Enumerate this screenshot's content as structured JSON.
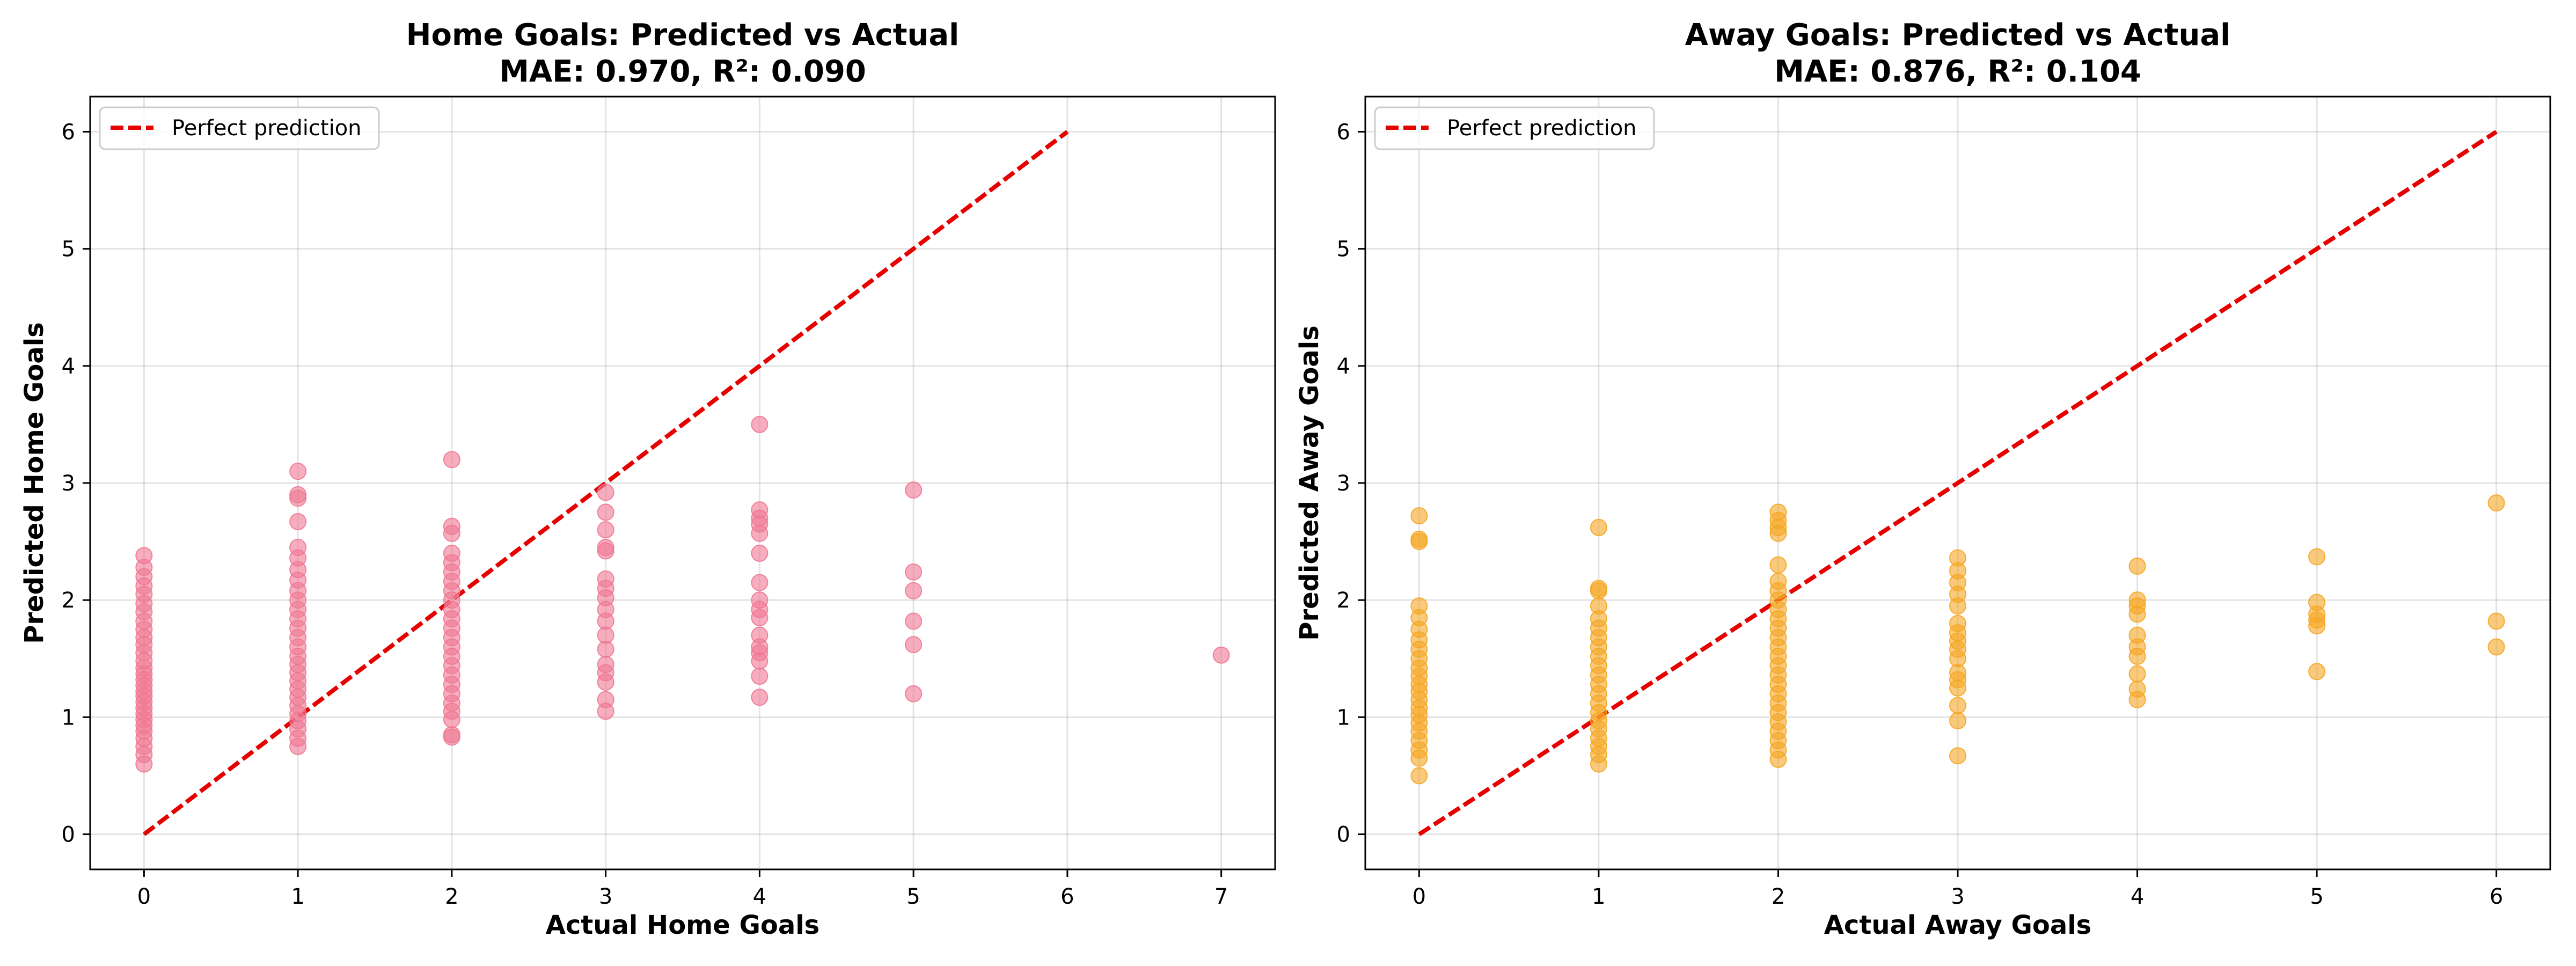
{
  "chart_data": [
    {
      "type": "scatter",
      "title": "Home Goals: Predicted vs Actual",
      "subtitle": "MAE: 0.970, R²: 0.090",
      "xlabel": "Actual Home Goals",
      "ylabel": "Predicted Home Goals",
      "xlim": [
        -0.35,
        7.35
      ],
      "ylim": [
        -0.3,
        6.3
      ],
      "xticks": [
        0,
        1,
        2,
        3,
        4,
        5,
        6,
        7
      ],
      "yticks": [
        0,
        1,
        2,
        3,
        4,
        5,
        6
      ],
      "grid": true,
      "legend": {
        "position": "top-left",
        "entries": [
          "Perfect prediction"
        ]
      },
      "colors": {
        "points": "#f07893",
        "reference": "#e60000"
      },
      "reference_line": {
        "name": "Perfect prediction",
        "x": [
          0,
          6
        ],
        "y": [
          0,
          6
        ]
      },
      "series": [
        {
          "points": [
            [
              0,
              0.6
            ],
            [
              0,
              0.68
            ],
            [
              0,
              0.75
            ],
            [
              0,
              0.82
            ],
            [
              0,
              0.88
            ],
            [
              0,
              0.93
            ],
            [
              0,
              0.98
            ],
            [
              0,
              1.03
            ],
            [
              0,
              1.08
            ],
            [
              0,
              1.13
            ],
            [
              0,
              1.18
            ],
            [
              0,
              1.22
            ],
            [
              0,
              1.27
            ],
            [
              0,
              1.32
            ],
            [
              0,
              1.37
            ],
            [
              0,
              1.42
            ],
            [
              0,
              1.48
            ],
            [
              0,
              1.55
            ],
            [
              0,
              1.62
            ],
            [
              0,
              1.68
            ],
            [
              0,
              1.75
            ],
            [
              0,
              1.82
            ],
            [
              0,
              1.9
            ],
            [
              0,
              1.97
            ],
            [
              0,
              2.05
            ],
            [
              0,
              2.12
            ],
            [
              0,
              2.2
            ],
            [
              0,
              2.28
            ],
            [
              0,
              2.38
            ],
            [
              1,
              0.75
            ],
            [
              1,
              0.82
            ],
            [
              1,
              0.9
            ],
            [
              1,
              0.97
            ],
            [
              1,
              1.03
            ],
            [
              1,
              1.1
            ],
            [
              1,
              1.17
            ],
            [
              1,
              1.24
            ],
            [
              1,
              1.31
            ],
            [
              1,
              1.38
            ],
            [
              1,
              1.45
            ],
            [
              1,
              1.52
            ],
            [
              1,
              1.6
            ],
            [
              1,
              1.68
            ],
            [
              1,
              1.76
            ],
            [
              1,
              1.84
            ],
            [
              1,
              1.92
            ],
            [
              1,
              2.0
            ],
            [
              1,
              2.08
            ],
            [
              1,
              2.17
            ],
            [
              1,
              2.26
            ],
            [
              1,
              2.36
            ],
            [
              1,
              2.45
            ],
            [
              1,
              2.67
            ],
            [
              1,
              2.87
            ],
            [
              1,
              2.9
            ],
            [
              1,
              3.1
            ],
            [
              2,
              0.83
            ],
            [
              2,
              0.85
            ],
            [
              2,
              0.98
            ],
            [
              2,
              1.05
            ],
            [
              2,
              1.12
            ],
            [
              2,
              1.2
            ],
            [
              2,
              1.28
            ],
            [
              2,
              1.36
            ],
            [
              2,
              1.44
            ],
            [
              2,
              1.52
            ],
            [
              2,
              1.6
            ],
            [
              2,
              1.68
            ],
            [
              2,
              1.76
            ],
            [
              2,
              1.84
            ],
            [
              2,
              1.92
            ],
            [
              2,
              2.0
            ],
            [
              2,
              2.08
            ],
            [
              2,
              2.16
            ],
            [
              2,
              2.24
            ],
            [
              2,
              2.32
            ],
            [
              2,
              2.4
            ],
            [
              2,
              2.57
            ],
            [
              2,
              2.63
            ],
            [
              2,
              3.2
            ],
            [
              3,
              1.05
            ],
            [
              3,
              1.15
            ],
            [
              3,
              1.3
            ],
            [
              3,
              1.38
            ],
            [
              3,
              1.45
            ],
            [
              3,
              1.58
            ],
            [
              3,
              1.7
            ],
            [
              3,
              1.82
            ],
            [
              3,
              1.92
            ],
            [
              3,
              2.02
            ],
            [
              3,
              2.1
            ],
            [
              3,
              2.18
            ],
            [
              3,
              2.42
            ],
            [
              3,
              2.45
            ],
            [
              3,
              2.6
            ],
            [
              3,
              2.75
            ],
            [
              3,
              2.92
            ],
            [
              4,
              1.17
            ],
            [
              4,
              1.35
            ],
            [
              4,
              1.48
            ],
            [
              4,
              1.55
            ],
            [
              4,
              1.6
            ],
            [
              4,
              1.7
            ],
            [
              4,
              1.85
            ],
            [
              4,
              1.92
            ],
            [
              4,
              2.0
            ],
            [
              4,
              2.15
            ],
            [
              4,
              2.4
            ],
            [
              4,
              2.57
            ],
            [
              4,
              2.65
            ],
            [
              4,
              2.7
            ],
            [
              4,
              2.77
            ],
            [
              4,
              3.5
            ],
            [
              5,
              1.2
            ],
            [
              5,
              1.62
            ],
            [
              5,
              1.82
            ],
            [
              5,
              2.08
            ],
            [
              5,
              2.24
            ],
            [
              5,
              2.94
            ],
            [
              7,
              1.53
            ]
          ]
        }
      ]
    },
    {
      "type": "scatter",
      "title": "Away Goals: Predicted vs Actual",
      "subtitle": "MAE: 0.876, R²: 0.104",
      "xlabel": "Actual Away Goals",
      "ylabel": "Predicted Away Goals",
      "xlim": [
        -0.3,
        6.3
      ],
      "ylim": [
        -0.3,
        6.3
      ],
      "xticks": [
        0,
        1,
        2,
        3,
        4,
        5,
        6
      ],
      "yticks": [
        0,
        1,
        2,
        3,
        4,
        5,
        6
      ],
      "grid": true,
      "legend": {
        "position": "top-left",
        "entries": [
          "Perfect prediction"
        ]
      },
      "colors": {
        "points": "#f5a623",
        "reference": "#e60000"
      },
      "reference_line": {
        "name": "Perfect prediction",
        "x": [
          0,
          6
        ],
        "y": [
          0,
          6
        ]
      },
      "series": [
        {
          "points": [
            [
              0,
              0.5
            ],
            [
              0,
              0.65
            ],
            [
              0,
              0.72
            ],
            [
              0,
              0.8
            ],
            [
              0,
              0.88
            ],
            [
              0,
              0.95
            ],
            [
              0,
              1.02
            ],
            [
              0,
              1.08
            ],
            [
              0,
              1.15
            ],
            [
              0,
              1.22
            ],
            [
              0,
              1.28
            ],
            [
              0,
              1.35
            ],
            [
              0,
              1.42
            ],
            [
              0,
              1.5
            ],
            [
              0,
              1.58
            ],
            [
              0,
              1.66
            ],
            [
              0,
              1.75
            ],
            [
              0,
              1.85
            ],
            [
              0,
              1.95
            ],
            [
              0,
              2.5
            ],
            [
              0,
              2.52
            ],
            [
              0,
              2.72
            ],
            [
              1,
              0.6
            ],
            [
              1,
              0.68
            ],
            [
              1,
              0.75
            ],
            [
              1,
              0.82
            ],
            [
              1,
              0.9
            ],
            [
              1,
              0.97
            ],
            [
              1,
              1.04
            ],
            [
              1,
              1.12
            ],
            [
              1,
              1.2
            ],
            [
              1,
              1.28
            ],
            [
              1,
              1.36
            ],
            [
              1,
              1.44
            ],
            [
              1,
              1.52
            ],
            [
              1,
              1.6
            ],
            [
              1,
              1.68
            ],
            [
              1,
              1.76
            ],
            [
              1,
              1.84
            ],
            [
              1,
              1.95
            ],
            [
              1,
              2.08
            ],
            [
              1,
              2.1
            ],
            [
              1,
              2.62
            ],
            [
              2,
              0.64
            ],
            [
              2,
              0.72
            ],
            [
              2,
              0.8
            ],
            [
              2,
              0.88
            ],
            [
              2,
              0.96
            ],
            [
              2,
              1.04
            ],
            [
              2,
              1.12
            ],
            [
              2,
              1.2
            ],
            [
              2,
              1.28
            ],
            [
              2,
              1.36
            ],
            [
              2,
              1.44
            ],
            [
              2,
              1.52
            ],
            [
              2,
              1.6
            ],
            [
              2,
              1.68
            ],
            [
              2,
              1.76
            ],
            [
              2,
              1.84
            ],
            [
              2,
              1.92
            ],
            [
              2,
              2.0
            ],
            [
              2,
              2.08
            ],
            [
              2,
              2.16
            ],
            [
              2,
              2.3
            ],
            [
              2,
              2.57
            ],
            [
              2,
              2.62
            ],
            [
              2,
              2.68
            ],
            [
              2,
              2.75
            ],
            [
              3,
              0.67
            ],
            [
              3,
              0.97
            ],
            [
              3,
              1.1
            ],
            [
              3,
              1.25
            ],
            [
              3,
              1.32
            ],
            [
              3,
              1.38
            ],
            [
              3,
              1.5
            ],
            [
              3,
              1.58
            ],
            [
              3,
              1.65
            ],
            [
              3,
              1.72
            ],
            [
              3,
              1.8
            ],
            [
              3,
              1.95
            ],
            [
              3,
              2.05
            ],
            [
              3,
              2.15
            ],
            [
              3,
              2.25
            ],
            [
              3,
              2.36
            ],
            [
              4,
              1.15
            ],
            [
              4,
              1.24
            ],
            [
              4,
              1.37
            ],
            [
              4,
              1.52
            ],
            [
              4,
              1.6
            ],
            [
              4,
              1.7
            ],
            [
              4,
              1.88
            ],
            [
              4,
              1.95
            ],
            [
              4,
              2.0
            ],
            [
              4,
              2.29
            ],
            [
              5,
              1.39
            ],
            [
              5,
              1.78
            ],
            [
              5,
              1.83
            ],
            [
              5,
              1.88
            ],
            [
              5,
              1.98
            ],
            [
              5,
              2.37
            ],
            [
              6,
              1.6
            ],
            [
              6,
              1.82
            ],
            [
              6,
              2.83
            ]
          ]
        }
      ]
    }
  ]
}
